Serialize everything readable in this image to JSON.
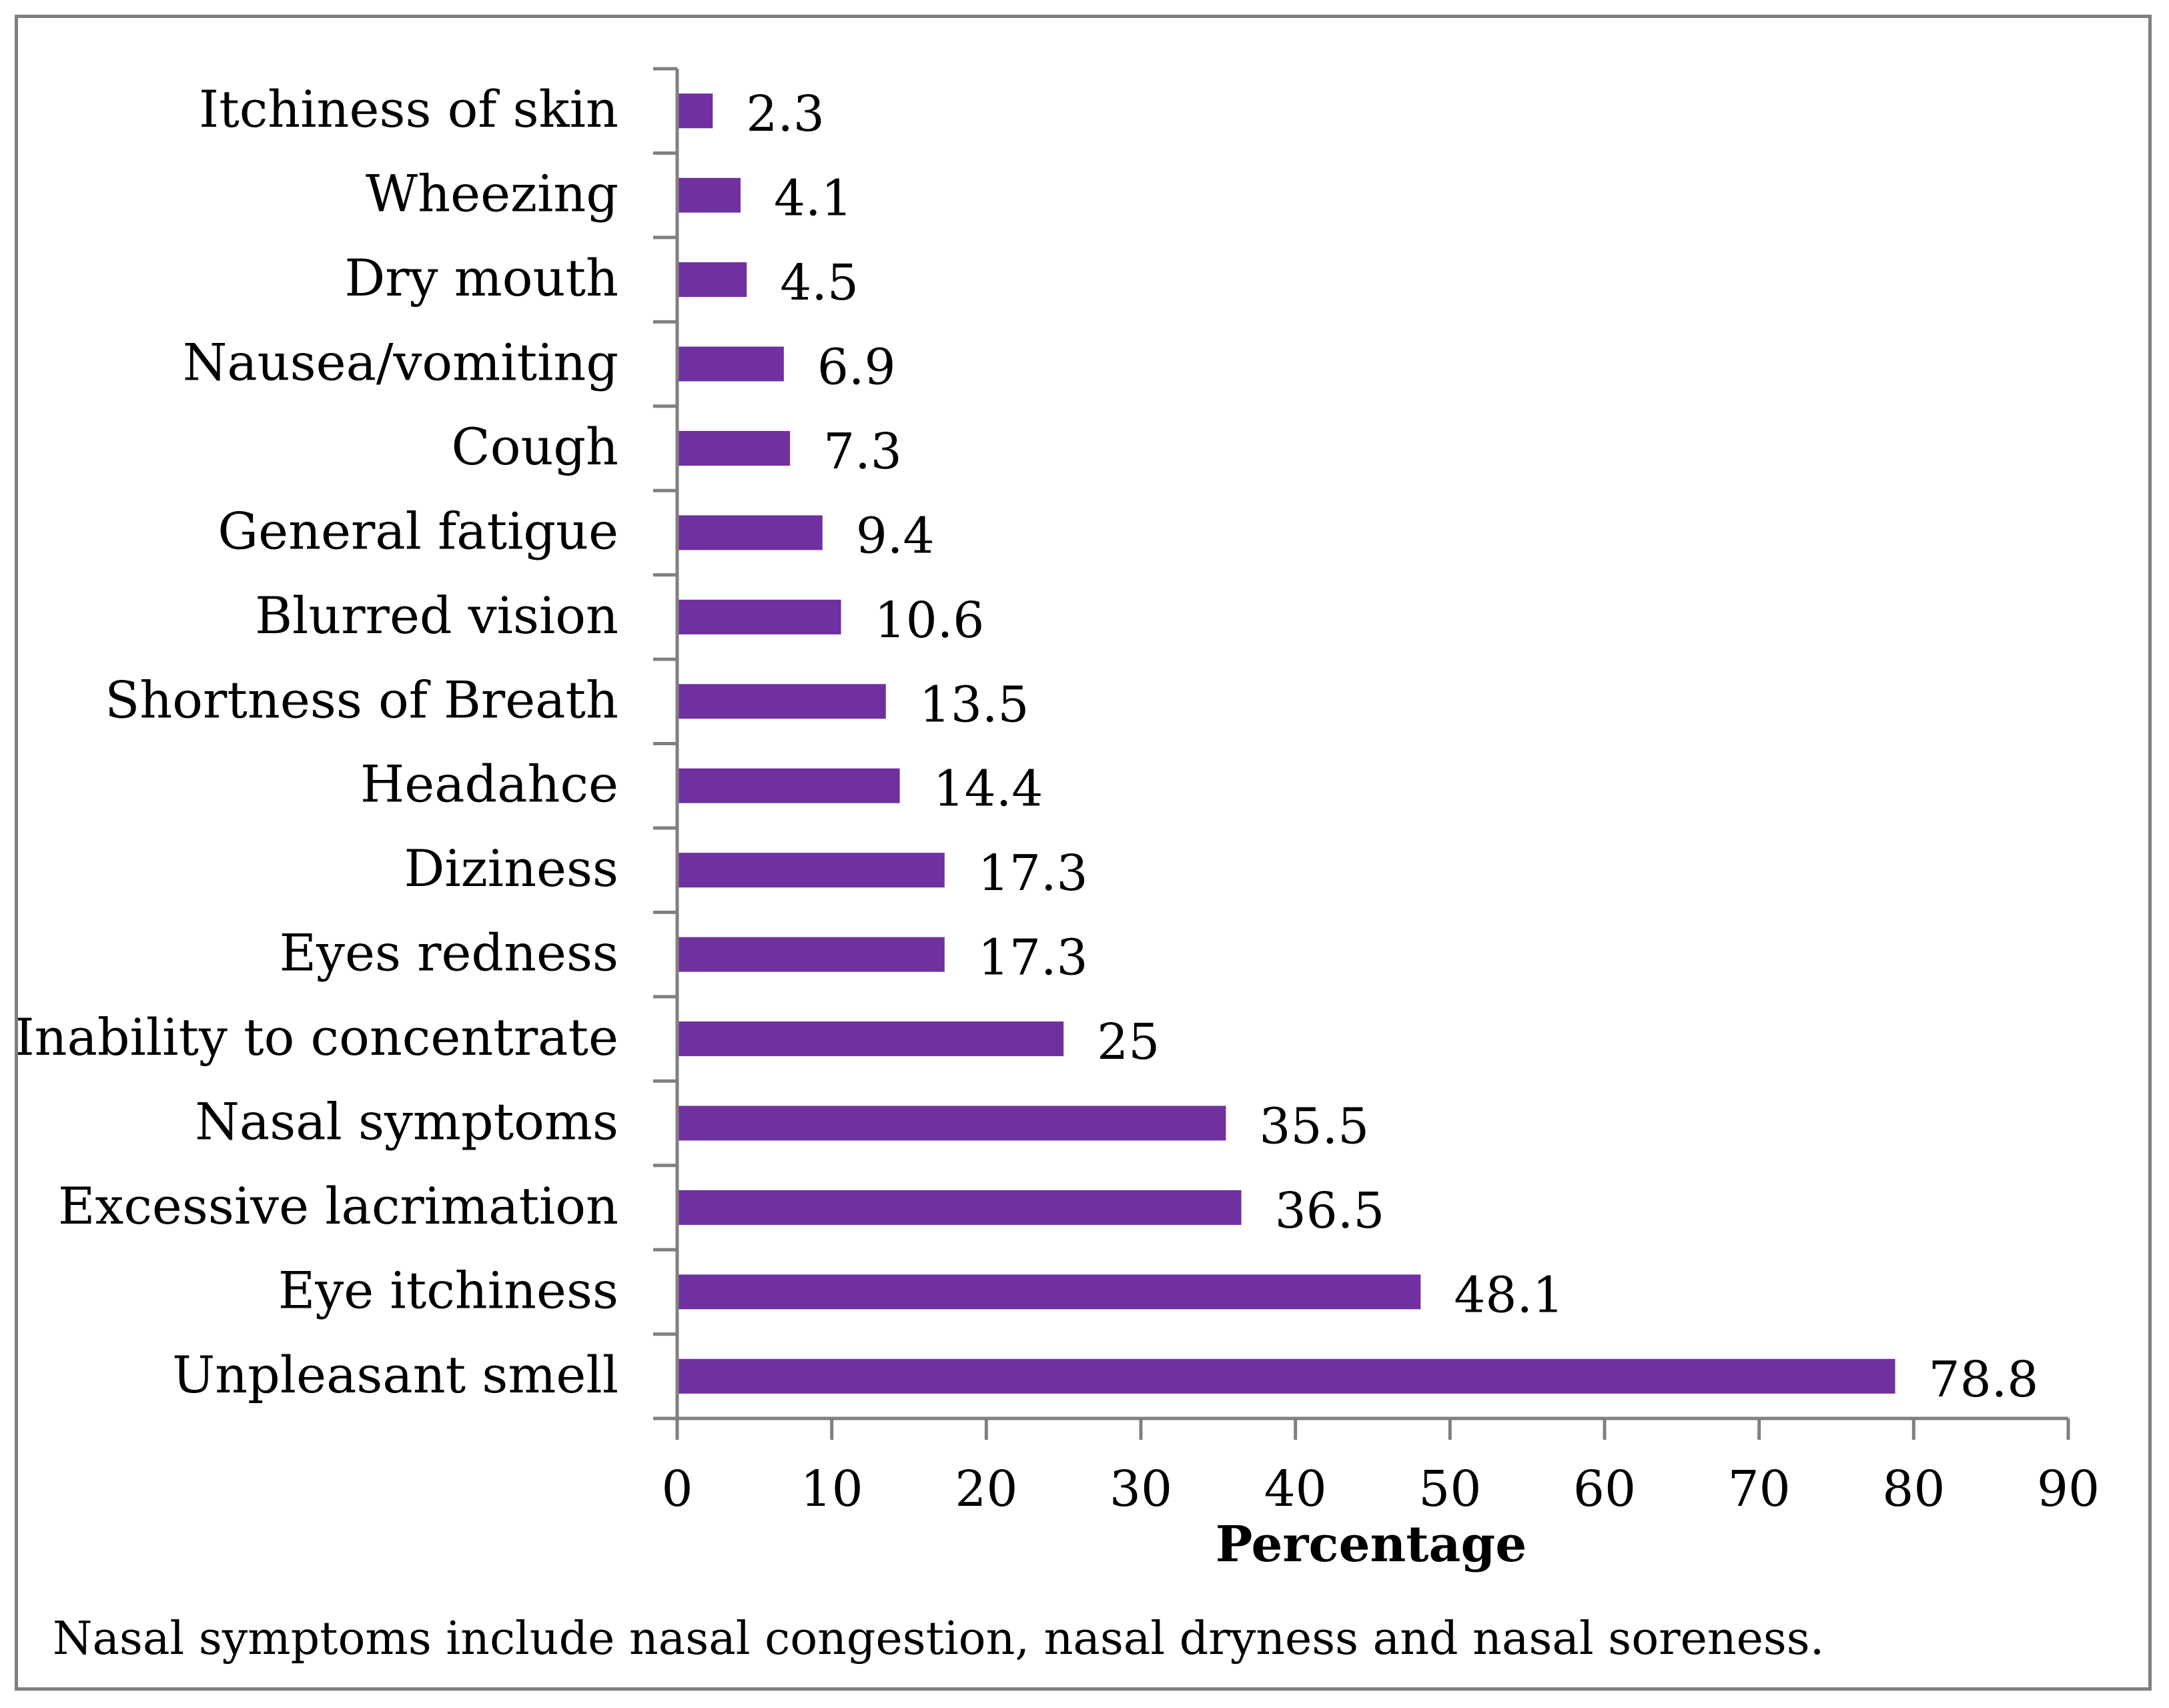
{
  "chart_data": {
    "type": "bar",
    "orientation": "horizontal",
    "categories": [
      "Itchiness of skin",
      "Wheezing",
      "Dry mouth",
      "Nausea/vomiting",
      "Cough",
      "General fatigue",
      "Blurred vision",
      "Shortness of Breath",
      "Headahce",
      "Diziness",
      "Eyes  redness",
      "Inability to concentrate",
      "Nasal symptoms",
      "Excessive lacrimation",
      "Eye itchiness",
      "Unpleasant smell"
    ],
    "values": [
      2.3,
      4.1,
      4.5,
      6.9,
      7.3,
      9.4,
      10.6,
      13.5,
      14.4,
      17.3,
      17.3,
      25,
      35.5,
      36.5,
      48.1,
      78.8
    ],
    "value_labels": [
      "2.3",
      "4.1",
      "4.5",
      "6.9",
      "7.3",
      "9.4",
      "10.6",
      "13.5",
      "14.4",
      "17.3",
      "17.3",
      "25",
      "35.5",
      "36.5",
      "48.1",
      "78.8"
    ],
    "xlabel": "Percentage",
    "ylabel": "",
    "xlim": [
      0,
      90
    ],
    "xticks": [
      0,
      10,
      20,
      30,
      40,
      50,
      60,
      70,
      80,
      90
    ],
    "xtick_labels": [
      "0",
      "10",
      "20",
      "30",
      "40",
      "50",
      "60",
      "70",
      "80",
      "90"
    ],
    "grid": false,
    "bar_color": "#7030a0"
  },
  "footnote": "Nasal symptoms include nasal congestion, nasal dryness and nasal soreness.",
  "colors": {
    "axis": "#808080",
    "frame": "#7f7f7f",
    "text": "#000000"
  }
}
